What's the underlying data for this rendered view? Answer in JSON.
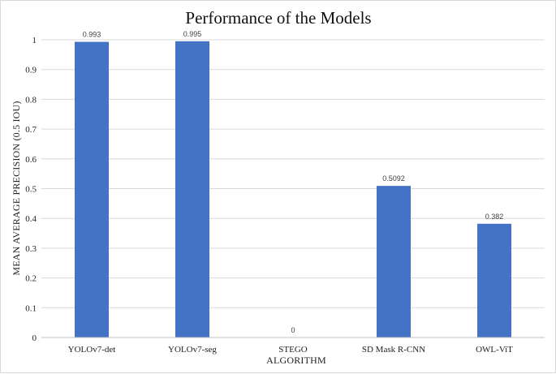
{
  "chart_data": {
    "type": "bar",
    "title": "Performance of the Models",
    "xlabel": "ALGORITHM",
    "ylabel": "MEAN AVERAGE PRECISION (0.5 IOU)",
    "categories": [
      "YOLOv7-det",
      "YOLOv7-seg",
      "STEGO",
      "SD Mask R-CNN",
      "OWL-ViT"
    ],
    "values": [
      0.993,
      0.995,
      0,
      0.5092,
      0.382
    ],
    "data_labels": [
      "0.993",
      "0.995",
      "0",
      "0.5092",
      "0.382"
    ],
    "ylim": [
      0,
      1
    ],
    "yticks": [
      "0",
      "0.1",
      "0.2",
      "0.3",
      "0.4",
      "0.5",
      "0.6",
      "0.7",
      "0.8",
      "0.9",
      "1"
    ],
    "grid": true,
    "legend": "none",
    "bar_color": "#4472C4"
  }
}
